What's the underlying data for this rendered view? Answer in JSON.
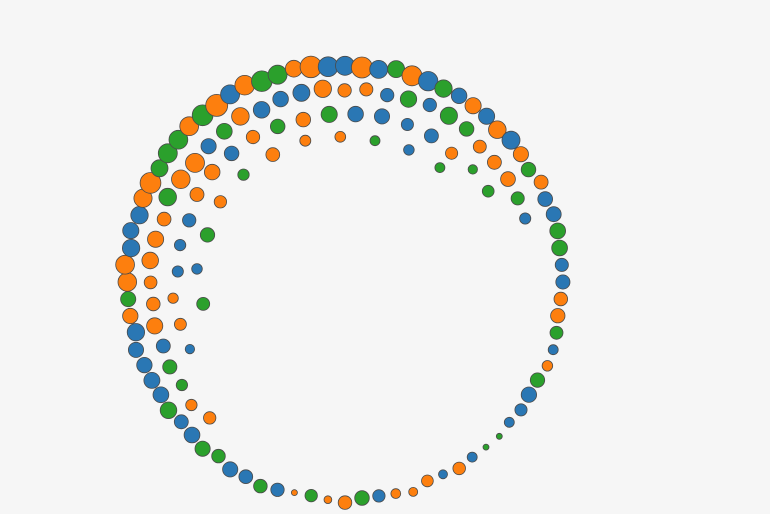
{
  "chart_data": {
    "type": "scatter",
    "layout": "circular-packed-bubbles",
    "palette": {
      "blue": "#2a77b4",
      "orange": "#fd7f0e",
      "green": "#2ba02c",
      "stroke": "#4a4a4a"
    },
    "color_sequence": [
      "blue",
      "orange",
      "green"
    ],
    "rings": [
      {
        "band": 0,
        "count": 80,
        "size_range": [
          5,
          11
        ]
      },
      {
        "band": 1,
        "count": 56,
        "size_range": [
          3,
          10
        ]
      },
      {
        "band": 2,
        "count": 40,
        "size_range": [
          2,
          9
        ]
      },
      {
        "band": 3,
        "count": 26,
        "size_range": [
          2,
          8
        ]
      }
    ]
  }
}
